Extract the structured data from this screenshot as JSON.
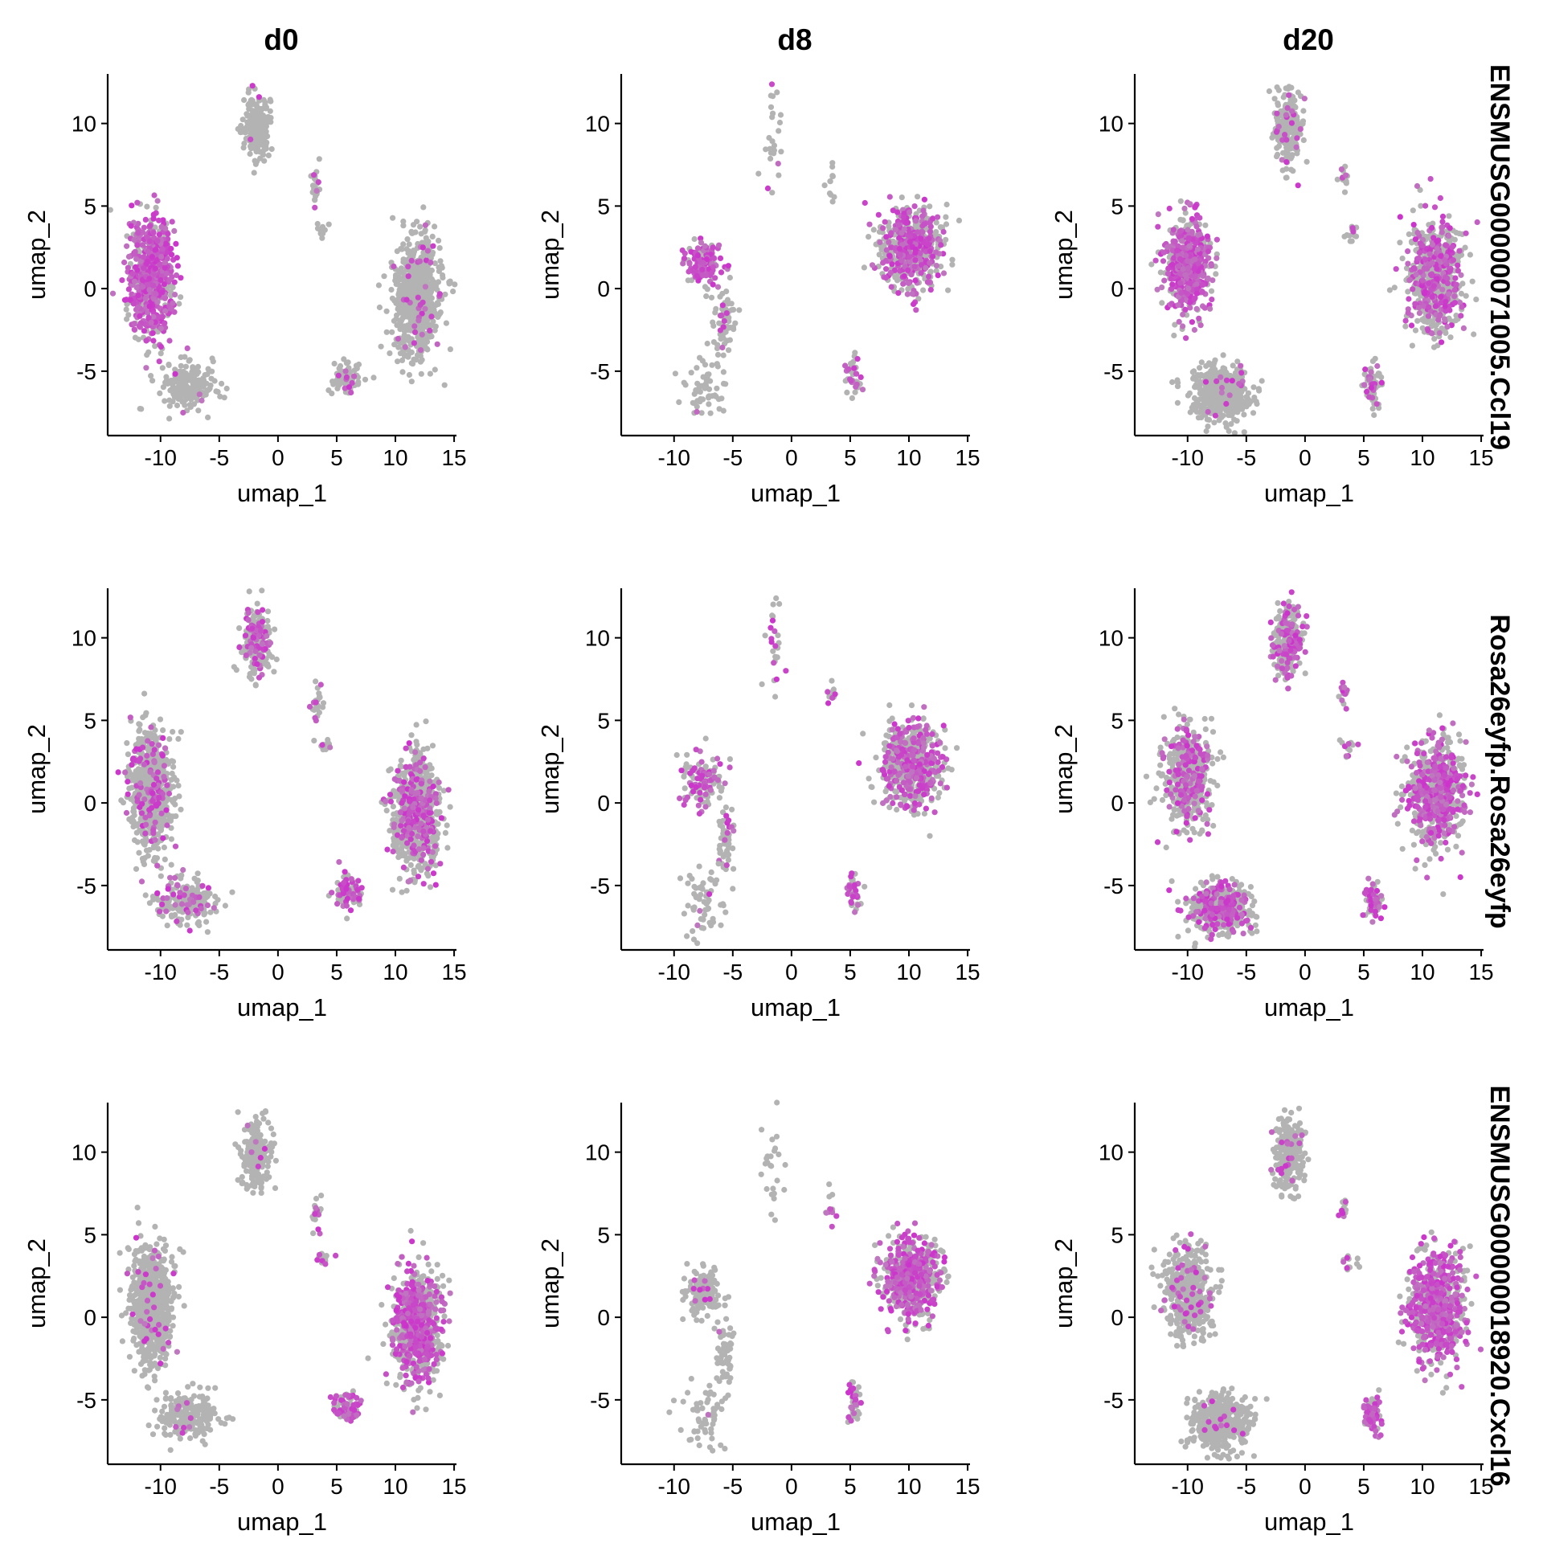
{
  "colors": {
    "low": "#b3b3b3",
    "high": "#cc33cc"
  },
  "chart_data": {
    "type": "scatter",
    "columns": [
      "d0",
      "d8",
      "d20"
    ],
    "rows": [
      "ENSMUSG00000071005.Ccl19",
      "Rosa26eyfp.Rosa26eyfp",
      "ENSMUSG00000018920.Cxcl16"
    ],
    "xlabel": "umap_1",
    "ylabel": "umap_2",
    "xlim": [
      -14.5,
      15.2
    ],
    "ylim": [
      -8.9,
      13
    ],
    "xticks": [
      -10,
      -5,
      0,
      5,
      10,
      15
    ],
    "xtick_labels": [
      "-10",
      "-5",
      "0",
      "5",
      "10",
      "15"
    ],
    "yticks": [
      -5,
      0,
      5,
      10
    ],
    "ytick_labels": [
      "-5",
      "0",
      "5",
      "10"
    ],
    "clusters": {
      "d0": [
        {
          "id": "left",
          "cx": -10.8,
          "cy": 0.8,
          "sx": 0.9,
          "sy": 1.8,
          "n": 700
        },
        {
          "id": "top",
          "cx": -1.8,
          "cy": 9.8,
          "sx": 0.6,
          "sy": 1.0,
          "n": 220
        },
        {
          "id": "small-a",
          "cx": 3.3,
          "cy": 6.3,
          "sx": 0.2,
          "sy": 0.6,
          "n": 22
        },
        {
          "id": "small-b",
          "cx": 3.8,
          "cy": 3.5,
          "sx": 0.4,
          "sy": 0.2,
          "n": 12
        },
        {
          "id": "bottom-left",
          "cx": -7.8,
          "cy": -6.0,
          "sx": 1.3,
          "sy": 0.7,
          "n": 200
        },
        {
          "id": "bottom-mid",
          "cx": 5.9,
          "cy": -5.5,
          "sx": 0.6,
          "sy": 0.5,
          "n": 80
        },
        {
          "id": "right",
          "cx": 11.8,
          "cy": -0.6,
          "sx": 1.0,
          "sy": 1.7,
          "n": 800
        }
      ],
      "d8": [
        {
          "id": "arc",
          "cx": -7.5,
          "cy": 1.5,
          "sx": 0.8,
          "sy": 0.7,
          "n": 130
        },
        {
          "id": "arc-tail",
          "cx": -5.6,
          "cy": -2.2,
          "sx": 0.4,
          "sy": 1.0,
          "n": 60
        },
        {
          "id": "bottom-left",
          "cx": -7.5,
          "cy": -6.0,
          "sx": 0.9,
          "sy": 0.9,
          "n": 60
        },
        {
          "id": "top",
          "cx": -1.5,
          "cy": 9.5,
          "sx": 0.5,
          "sy": 1.6,
          "n": 25
        },
        {
          "id": "small-a",
          "cx": 3.3,
          "cy": 6.5,
          "sx": 0.2,
          "sy": 0.6,
          "n": 12
        },
        {
          "id": "right",
          "cx": 10.2,
          "cy": 2.4,
          "sx": 1.2,
          "sy": 1.2,
          "n": 600
        },
        {
          "id": "bottom-mid",
          "cx": 5.3,
          "cy": -5.3,
          "sx": 0.3,
          "sy": 0.6,
          "n": 40
        }
      ],
      "d20": [
        {
          "id": "left",
          "cx": -10.0,
          "cy": 1.5,
          "sx": 1.0,
          "sy": 1.4,
          "n": 500
        },
        {
          "id": "top",
          "cx": -1.5,
          "cy": 9.8,
          "sx": 0.6,
          "sy": 1.1,
          "n": 260
        },
        {
          "id": "small-a",
          "cx": 3.3,
          "cy": 6.6,
          "sx": 0.2,
          "sy": 0.4,
          "n": 15
        },
        {
          "id": "small-b",
          "cx": 3.8,
          "cy": 3.3,
          "sx": 0.4,
          "sy": 0.3,
          "n": 12
        },
        {
          "id": "bottom-left",
          "cx": -7.2,
          "cy": -6.4,
          "sx": 1.2,
          "sy": 0.8,
          "n": 500
        },
        {
          "id": "bottom-mid",
          "cx": 5.8,
          "cy": -5.9,
          "sx": 0.4,
          "sy": 0.6,
          "n": 70
        },
        {
          "id": "right",
          "cx": 11.2,
          "cy": 0.6,
          "sx": 1.2,
          "sy": 1.6,
          "n": 700
        }
      ]
    },
    "expression": [
      {
        "d0": {
          "left": 0.75,
          "right": 0.05,
          "top": 0.02,
          "bottom-left": 0.03,
          "bottom-mid": 0.15,
          "small-a": 0.2,
          "small-b": 0.1
        },
        "d8": {
          "arc": 0.7,
          "arc-tail": 0.1,
          "bottom-left": 0.02,
          "top": 0.1,
          "small-a": 0.2,
          "right": 0.4,
          "bottom-mid": 0.3
        },
        "d20": {
          "left": 0.7,
          "right": 0.35,
          "top": 0.1,
          "bottom-left": 0.03,
          "bottom-mid": 0.35,
          "small-a": 0.2,
          "small-b": 0.2
        }
      },
      {
        "d0": {
          "left": 0.15,
          "right": 0.25,
          "top": 0.3,
          "bottom-left": 0.2,
          "bottom-mid": 0.5,
          "small-a": 0.4,
          "small-b": 0.3
        },
        "d8": {
          "arc": 0.45,
          "arc-tail": 0.15,
          "bottom-left": 0.05,
          "top": 0.35,
          "small-a": 0.5,
          "right": 0.4,
          "bottom-mid": 0.6
        },
        "d20": {
          "left": 0.3,
          "right": 0.45,
          "top": 0.35,
          "bottom-left": 0.3,
          "bottom-mid": 0.6,
          "small-a": 0.4,
          "small-b": 0.5
        }
      },
      {
        "d0": {
          "left": 0.04,
          "right": 0.45,
          "top": 0.02,
          "bottom-left": 0.05,
          "bottom-mid": 0.7,
          "small-a": 0.3,
          "small-b": 0.3
        },
        "d8": {
          "arc": 0.08,
          "arc-tail": 0.02,
          "bottom-left": 0.02,
          "top": 0.05,
          "small-a": 0.4,
          "right": 0.55,
          "bottom-mid": 0.55
        },
        "d20": {
          "left": 0.08,
          "right": 0.6,
          "top": 0.05,
          "bottom-left": 0.03,
          "bottom-mid": 0.8,
          "small-a": 0.4,
          "small-b": 0.3
        }
      }
    ]
  }
}
